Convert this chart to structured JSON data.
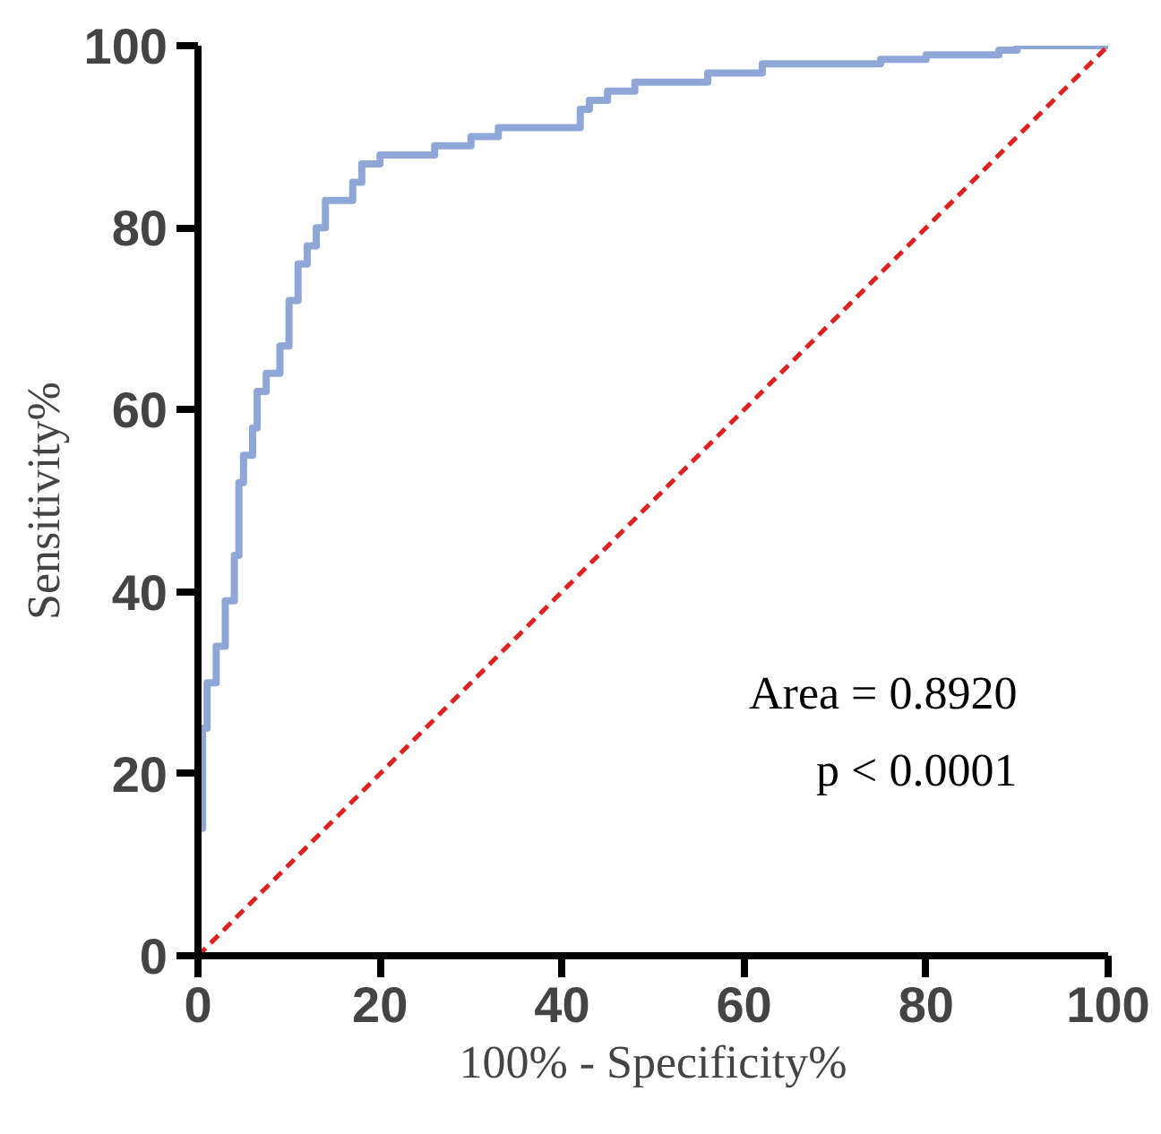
{
  "chart_data": {
    "type": "line",
    "xlabel": "100% - Specificity%",
    "ylabel": "Sensitivity%",
    "xlim": [
      0,
      100
    ],
    "ylim": [
      0,
      100
    ],
    "xticks": [
      0,
      20,
      40,
      60,
      80,
      100
    ],
    "yticks": [
      0,
      20,
      40,
      60,
      80,
      100
    ],
    "grid": false,
    "series": [
      {
        "color": "#8fa7d6",
        "line_style": "solid",
        "x": [
          0,
          0,
          0.5,
          0.5,
          1,
          1,
          2,
          2,
          3,
          3,
          4,
          4,
          4.5,
          4.5,
          5,
          5,
          6,
          6,
          6.5,
          6.5,
          7.5,
          7.5,
          9,
          9,
          10,
          10,
          11,
          11,
          12,
          12,
          13,
          13,
          14,
          14,
          17,
          17,
          18,
          18,
          20,
          20,
          26,
          26,
          30,
          30,
          33,
          33,
          42,
          42,
          43,
          43,
          45,
          45,
          48,
          48,
          56,
          56,
          62,
          62,
          75,
          75,
          80,
          80,
          88,
          88,
          90,
          90,
          100
        ],
        "values": [
          0,
          14,
          14,
          25,
          25,
          30,
          30,
          34,
          34,
          39,
          39,
          44,
          44,
          52,
          52,
          55,
          55,
          58,
          58,
          62,
          62,
          64,
          64,
          67,
          67,
          72,
          72,
          76,
          76,
          78,
          78,
          80,
          80,
          83,
          83,
          85,
          85,
          87,
          87,
          88,
          88,
          89,
          89,
          90,
          90,
          91,
          91,
          93,
          93,
          94,
          94,
          95,
          95,
          96,
          96,
          97,
          97,
          98,
          98,
          98.5,
          98.5,
          99,
          99,
          99.5,
          99.5,
          100,
          100
        ]
      },
      {
        "color": "#e02020",
        "line_style": "dashed",
        "x": [
          0,
          100
        ],
        "values": [
          0,
          100
        ]
      }
    ],
    "annotations": [
      "Area = 0.8920",
      "p < 0.0001"
    ]
  }
}
